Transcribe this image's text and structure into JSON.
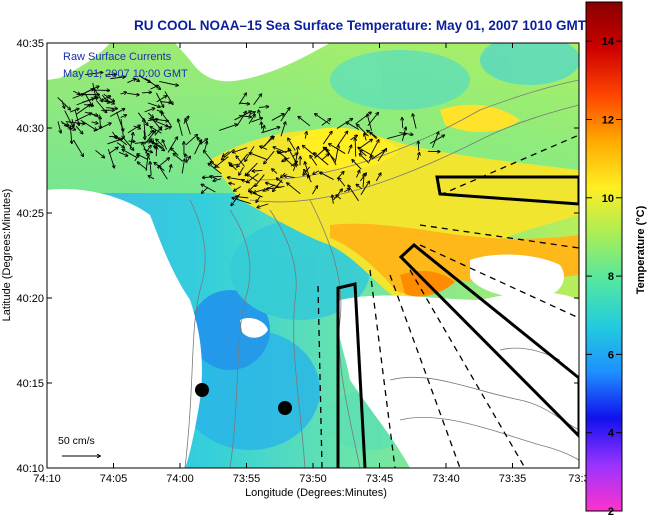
{
  "chart_data": {
    "type": "heatmap",
    "title": "RU COOL  NOAA–15  Sea Surface Temperature:  May 01, 2007 1010 GMT",
    "xlabel": "Longitude (Degrees:Minutes)",
    "ylabel": "Latitude (Degrees:Minutes)",
    "x_ticks": [
      "74:10",
      "74:05",
      "74:00",
      "73:55",
      "73:50",
      "73:45",
      "73:40",
      "73:35",
      "73:3"
    ],
    "y_ticks": [
      "40:35",
      "40:30",
      "40:25",
      "40:20",
      "40:15",
      "40:10"
    ],
    "xlim_deg": [
      -74.1667,
      -73.5
    ],
    "ylim_deg": [
      40.1667,
      40.5833
    ],
    "annotation_lines": [
      "Raw Surface Currents",
      "May 01, 2007 10:00 GMT"
    ],
    "scale_label": "50 cm/s",
    "colorbar": {
      "label": "Temperature (°C)",
      "min": 2,
      "max": 15,
      "ticks": [
        2,
        4,
        6,
        8,
        10,
        12,
        14
      ],
      "colors": [
        "#ff33cc",
        "#9933ff",
        "#1111ee",
        "#1e90ff",
        "#22ccdd",
        "#55e7a0",
        "#aaee55",
        "#ffee22",
        "#ffaa00",
        "#ff4400",
        "#cc0000",
        "#880000"
      ]
    },
    "grid": false,
    "legend": "none"
  },
  "colors": {
    "land": "#ffffff",
    "cloud": "#ffffff",
    "title": "#0b1f9e",
    "annotation": "#1a2fb0",
    "vector": "#000000",
    "contour": "#7a7a7a"
  }
}
